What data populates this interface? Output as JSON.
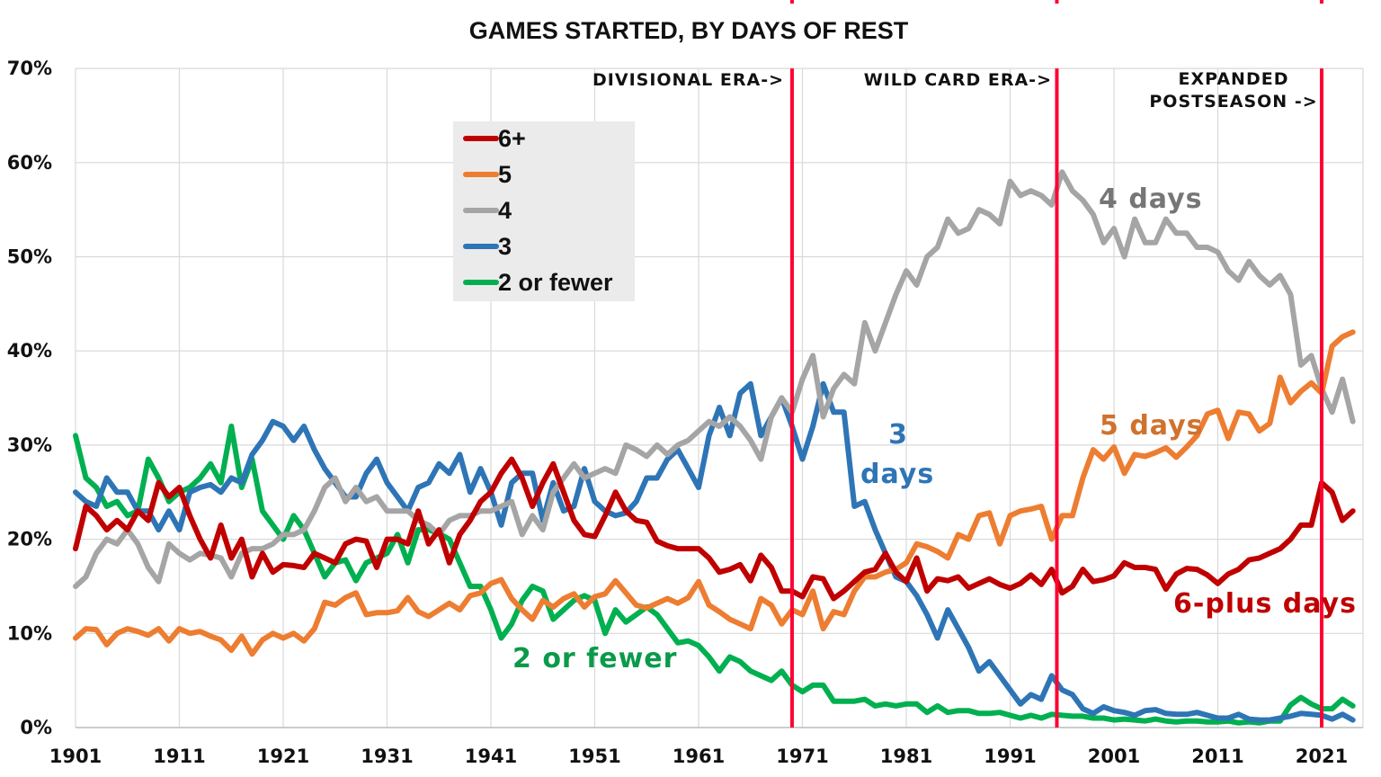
{
  "chart_data": {
    "type": "line",
    "title": "GAMES STARTED, BY DAYS OF REST",
    "xlabel": "",
    "ylabel": "",
    "xlim": [
      1901,
      2024
    ],
    "ylim": [
      0,
      70
    ],
    "grid": true,
    "legend_position": "top-left-center",
    "x_ticks": [
      "1901",
      "1911",
      "1921",
      "1931",
      "1941",
      "1951",
      "1961",
      "1971",
      "1981",
      "1991",
      "2001",
      "2011",
      "2021"
    ],
    "y_ticks": [
      "0%",
      "10%",
      "20%",
      "30%",
      "40%",
      "50%",
      "60%",
      "70%"
    ],
    "years": [
      1901,
      1902,
      1903,
      1904,
      1905,
      1906,
      1907,
      1908,
      1909,
      1910,
      1911,
      1912,
      1913,
      1914,
      1915,
      1916,
      1917,
      1918,
      1919,
      1920,
      1921,
      1922,
      1923,
      1924,
      1925,
      1926,
      1927,
      1928,
      1929,
      1930,
      1931,
      1932,
      1933,
      1934,
      1935,
      1936,
      1937,
      1938,
      1939,
      1940,
      1941,
      1942,
      1943,
      1944,
      1945,
      1946,
      1947,
      1948,
      1949,
      1950,
      1951,
      1952,
      1953,
      1954,
      1955,
      1956,
      1957,
      1958,
      1959,
      1960,
      1961,
      1962,
      1963,
      1964,
      1965,
      1966,
      1967,
      1968,
      1969,
      1970,
      1971,
      1972,
      1973,
      1974,
      1975,
      1976,
      1977,
      1978,
      1979,
      1980,
      1981,
      1982,
      1983,
      1984,
      1985,
      1986,
      1987,
      1988,
      1989,
      1990,
      1991,
      1992,
      1993,
      1994,
      1995,
      1996,
      1997,
      1998,
      1999,
      2000,
      2001,
      2002,
      2003,
      2004,
      2005,
      2006,
      2007,
      2008,
      2009,
      2010,
      2011,
      2012,
      2013,
      2014,
      2015,
      2016,
      2017,
      2018,
      2019,
      2020,
      2021,
      2022,
      2023,
      2024
    ],
    "series": [
      {
        "name": "6+",
        "color": "#c00000",
        "values": [
          19,
          23.5,
          22.5,
          21,
          22,
          21,
          23,
          22,
          26,
          24.5,
          25.5,
          22.5,
          20,
          18,
          21.5,
          18,
          20,
          16,
          18.5,
          16.5,
          17.3,
          17.2,
          17,
          18.5,
          18,
          17.5,
          19.5,
          20,
          19.8,
          17,
          20,
          20,
          19.5,
          23,
          19.5,
          21,
          17.5,
          20.5,
          22,
          24,
          25,
          27,
          28.5,
          26.5,
          23.5,
          26,
          28,
          25,
          22,
          20.5,
          20.3,
          22.5,
          25,
          23,
          22,
          21.8,
          19.8,
          19.3,
          19,
          19,
          19,
          18,
          16.5,
          16.8,
          17.3,
          15.6,
          18.3,
          17,
          14.5,
          14.5,
          13.9,
          16,
          15.8,
          13.7,
          14.5,
          15.5,
          16.5,
          16.8,
          18.5,
          16.5,
          15.5,
          18,
          14.5,
          15.8,
          15.6,
          16,
          14.8,
          15.3,
          15.8,
          15.2,
          14.8,
          15.3,
          16.2,
          15.2,
          16.8,
          14.3,
          15,
          16.8,
          15.5,
          15.7,
          16.1,
          17.5,
          17,
          17,
          16.8,
          14.7,
          16.3,
          16.9,
          16.8,
          16.2,
          15.3,
          16.3,
          16.8,
          17.8,
          18,
          18.5,
          19,
          20,
          21.5,
          21.5,
          26,
          25,
          22,
          23
        ]
      },
      {
        "name": "5",
        "color": "#ed7d31",
        "values": [
          9.5,
          10.5,
          10.4,
          8.8,
          10,
          10.5,
          10.2,
          9.8,
          10.5,
          9.2,
          10.5,
          10,
          10.2,
          9.7,
          9.3,
          8.2,
          9.7,
          7.8,
          9.3,
          10,
          9.5,
          10,
          9.2,
          10.5,
          13.3,
          13,
          13.8,
          14.3,
          12,
          12.2,
          12.2,
          12.4,
          13.8,
          12.3,
          11.8,
          12.5,
          13.2,
          12.5,
          14,
          14.3,
          15.3,
          15.7,
          13.7,
          12.5,
          11.5,
          13.5,
          12.8,
          13.7,
          14.2,
          12.8,
          13.9,
          14.2,
          15.6,
          14.3,
          13,
          12.7,
          13.2,
          13.7,
          13.2,
          13.8,
          15.5,
          13,
          12.3,
          11.5,
          11,
          10.5,
          13.7,
          13,
          11,
          12.5,
          12,
          14.5,
          10.5,
          12.3,
          12,
          14.5,
          16,
          16,
          16.5,
          16.8,
          17.5,
          19.5,
          19.2,
          18.7,
          18,
          20.5,
          20,
          22.5,
          22.8,
          19.5,
          22.5,
          23,
          23.2,
          23.5,
          20,
          22.5,
          22.5,
          26.5,
          29.5,
          28.5,
          29.8,
          27,
          29,
          28.8,
          29.2,
          29.7,
          28.7,
          29.8,
          31,
          33.3,
          33.7,
          30.7,
          33.5,
          33.3,
          31.5,
          32.3,
          37.2,
          34.5,
          35.7,
          36.6,
          35.5,
          40.5,
          41.5,
          42
        ]
      },
      {
        "name": "4",
        "color": "#a5a5a5",
        "values": [
          15,
          16,
          18.5,
          20,
          19.5,
          21,
          19.5,
          17,
          15.5,
          19.5,
          18.5,
          17.8,
          18.5,
          18.3,
          18,
          16,
          18.5,
          19,
          19,
          19.5,
          20.5,
          20.5,
          21,
          23,
          25.5,
          26.5,
          24,
          25.5,
          24,
          24.5,
          23,
          23,
          23,
          22,
          21.5,
          20.5,
          22,
          22.5,
          22.5,
          23,
          23,
          23.5,
          24,
          20.5,
          22.5,
          21,
          25,
          26.5,
          28,
          26.5,
          27,
          27.5,
          27,
          30,
          29.5,
          28.8,
          30,
          29,
          30,
          30.5,
          31.5,
          32.5,
          32,
          33,
          32,
          30.5,
          28.5,
          33,
          35,
          33.5,
          37,
          39.5,
          33,
          36,
          37.5,
          36.5,
          43,
          40,
          43,
          46,
          48.5,
          47,
          50,
          51,
          54,
          52.5,
          53,
          55,
          54.5,
          53.5,
          58,
          56.5,
          57,
          56.5,
          55.5,
          59,
          57,
          56,
          54.5,
          51.5,
          53,
          50,
          54,
          51.5,
          51.5,
          54,
          52.5,
          52.5,
          51,
          51,
          50.5,
          48.5,
          47.5,
          49.5,
          48,
          47,
          48,
          46,
          38.5,
          39.5,
          36,
          33.5,
          37,
          32.5
        ]
      },
      {
        "name": "3",
        "color": "#2e75b6",
        "values": [
          25,
          24,
          23.5,
          26.5,
          25,
          25,
          23,
          23,
          21,
          23,
          21,
          25,
          25.5,
          25.8,
          25,
          26.5,
          26,
          29,
          30.5,
          32.5,
          32,
          30.5,
          32,
          29.5,
          27.5,
          26,
          24.5,
          24.5,
          27,
          28.5,
          26,
          24.5,
          23,
          25.5,
          26,
          28,
          27,
          29,
          25,
          27.5,
          25,
          21.5,
          26,
          27,
          27,
          22,
          26,
          23,
          23.5,
          27.5,
          24,
          23,
          22.5,
          22.8,
          24,
          26.5,
          26.5,
          28.5,
          29.5,
          27.5,
          25.5,
          31,
          34,
          31,
          35.5,
          36.5,
          31,
          33,
          35,
          32,
          28.5,
          32,
          36.5,
          33.5,
          33.5,
          23.5,
          24,
          21,
          18.5,
          16,
          15.5,
          14,
          12,
          9.5,
          12.5,
          10.5,
          8.5,
          6,
          7,
          5.5,
          4,
          2.5,
          3.5,
          3,
          5.5,
          4,
          3.5,
          2,
          1.5,
          2.2,
          1.8,
          1.6,
          1.3,
          1.8,
          1.9,
          1.5,
          1.4,
          1.4,
          1.6,
          1.3,
          1,
          1,
          1.4,
          0.9,
          0.8,
          0.8,
          1,
          1.2,
          1.5,
          1.4,
          1.3,
          0.9,
          1.4,
          0.8
        ]
      },
      {
        "name": "2 or fewer",
        "color": "#00b050",
        "values": [
          31,
          26.5,
          25.5,
          23.5,
          24,
          22.5,
          23,
          28.5,
          26.5,
          24,
          25,
          25.5,
          26.5,
          28,
          26,
          32,
          25.5,
          28.5,
          23,
          21.5,
          20,
          22.5,
          21,
          18.5,
          16,
          17.5,
          17.8,
          15.6,
          17.5,
          18,
          18.5,
          20.5,
          17.5,
          21,
          21,
          20.6,
          20,
          17.5,
          15,
          15,
          12.5,
          9.5,
          11,
          13.5,
          15,
          14.5,
          11.5,
          12.5,
          13.5,
          14,
          13.5,
          10,
          12.5,
          11.2,
          12,
          12.8,
          12,
          10.5,
          9,
          9.2,
          8.7,
          7.5,
          6,
          7.5,
          7,
          6,
          5.5,
          5,
          6,
          4.5,
          3.8,
          4.5,
          4.5,
          2.8,
          2.8,
          2.8,
          3,
          2.3,
          2.5,
          2.3,
          2.5,
          2.5,
          1.6,
          2.3,
          1.6,
          1.8,
          1.8,
          1.5,
          1.5,
          1.6,
          1.3,
          1,
          1.3,
          1,
          1.4,
          1.3,
          1.2,
          1.2,
          1,
          1,
          0.8,
          0.9,
          0.8,
          0.7,
          0.9,
          0.7,
          0.6,
          0.7,
          0.7,
          0.6,
          0.6,
          0.7,
          0.5,
          0.6,
          0.5,
          0.7,
          0.7,
          2.4,
          3.2,
          2.5,
          2,
          2,
          3,
          2.3
        ]
      }
    ],
    "legend": [
      "6+",
      "5",
      "4",
      "3",
      "2 or fewer"
    ],
    "era_lines": {
      "color": "#ff0033",
      "positions": [
        1970,
        1995.5,
        2021
      ],
      "labels": [
        "DIVISIONAL ERA->",
        "WILD CARD ERA->",
        "EXPANDED",
        "POSTSEASON ->"
      ]
    },
    "annotations": {
      "four_days": "4 days",
      "five_days": "5 days",
      "three": "3",
      "three_days": "days",
      "six_plus": "6-plus days",
      "two_or_fewer": "2 or fewer"
    }
  }
}
